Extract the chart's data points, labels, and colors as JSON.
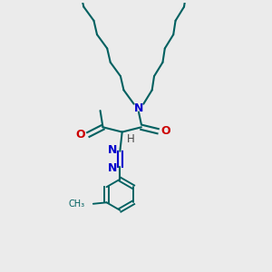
{
  "bg_color": "#ebebeb",
  "bond_color": "#006060",
  "n_color": "#0000cc",
  "o_color": "#cc0000",
  "h_color": "#444444",
  "line_width": 1.5,
  "font_size": 8.5,
  "fig_size": [
    3.0,
    3.0
  ],
  "dpi": 100,
  "xlim": [
    0,
    10
  ],
  "ylim": [
    0,
    10
  ]
}
